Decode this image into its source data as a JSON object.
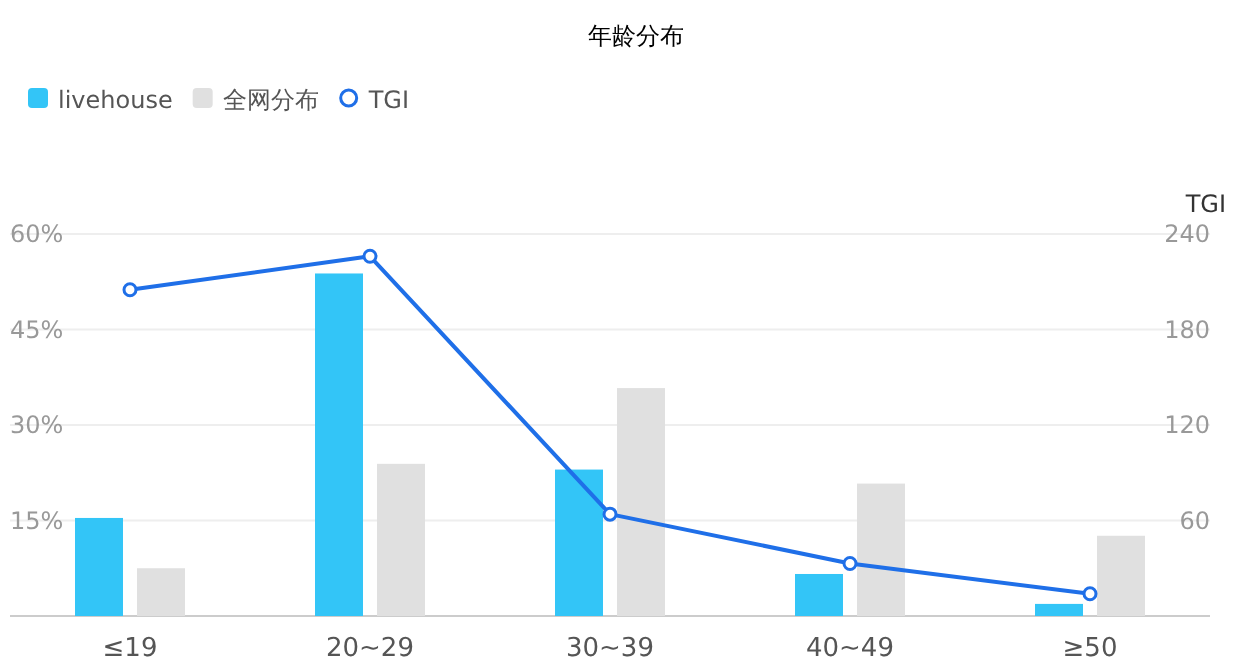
{
  "chart_data": {
    "type": "bar",
    "title": "年龄分布",
    "categories": [
      "≤19",
      "20~29",
      "30~39",
      "40~49",
      "≥50"
    ],
    "series": [
      {
        "name": "livehouse",
        "color": "#33c5f7",
        "values": [
          15.4,
          53.8,
          23,
          6.6,
          1.9
        ]
      },
      {
        "name": "全网分布",
        "color": "#e0e0e0",
        "values": [
          7.5,
          23.9,
          35.8,
          20.8,
          12.6
        ]
      },
      {
        "name": "TGI",
        "type": "line",
        "axis": "y2",
        "color": "#1f6fe8",
        "marker": "circle",
        "values": [
          205,
          226,
          64,
          33,
          14
        ]
      }
    ],
    "ylim": [
      0,
      60
    ],
    "yticks": [
      {
        "value": 0,
        "label": null
      },
      {
        "value": 15,
        "label": "15%"
      },
      {
        "value": 30,
        "label": "30%"
      },
      {
        "value": 45,
        "label": "45%"
      },
      {
        "value": 60,
        "label": "60%"
      }
    ],
    "y2label": "TGI",
    "y2lim": [
      0,
      240
    ],
    "y2ticks": [
      60,
      120,
      180,
      240
    ],
    "grid": "y",
    "legend": "top left"
  }
}
